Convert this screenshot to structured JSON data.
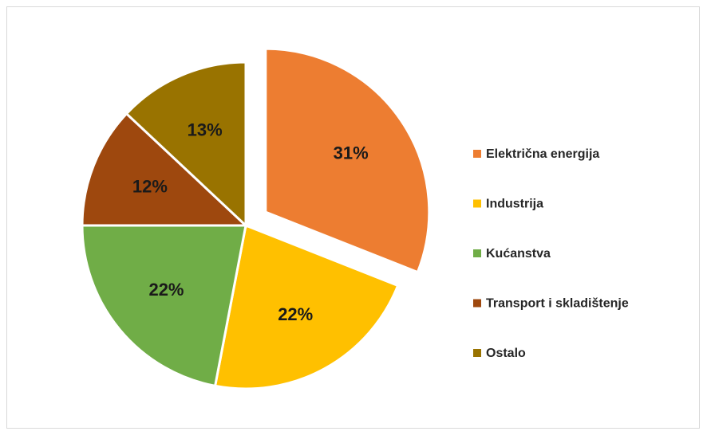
{
  "chart_data": {
    "type": "pie",
    "categories": [
      "Električna energija",
      "Industrija",
      "Kućanstva",
      "Transport i skladištenje",
      "Ostalo"
    ],
    "values": [
      31,
      22,
      22,
      12,
      13
    ],
    "value_labels": [
      "31%",
      "22%",
      "22%",
      "12%",
      "13%"
    ],
    "colors": [
      "#ed7d31",
      "#ffc000",
      "#70ad47",
      "#9e480e",
      "#997300"
    ],
    "legend": "right"
  }
}
